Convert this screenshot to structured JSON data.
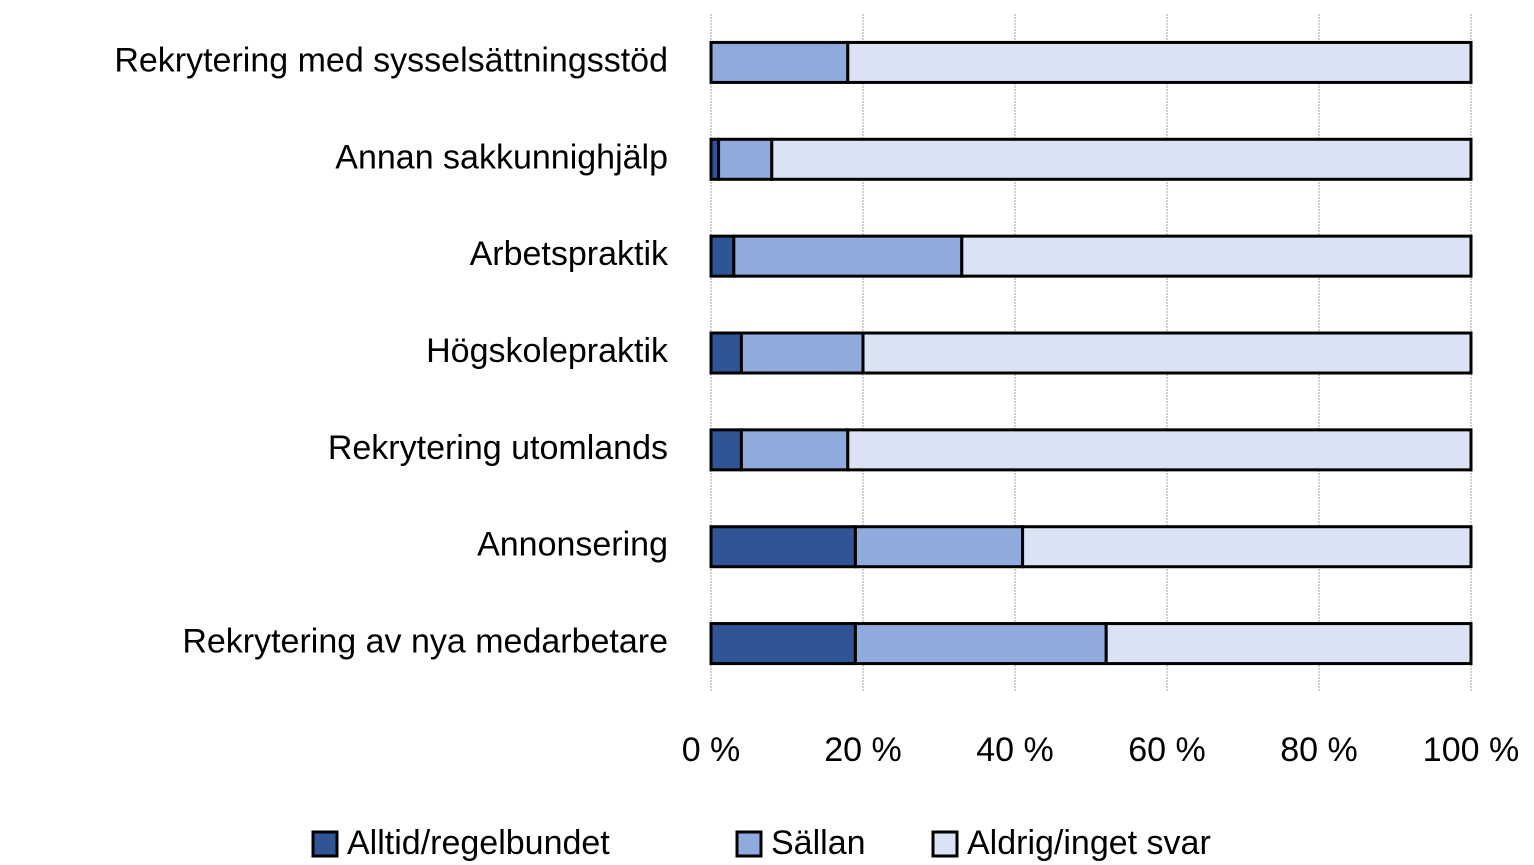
{
  "chart_data": {
    "type": "stacked_barh",
    "categories": [
      "Rekrytering med sysselsättningsstöd",
      "Annan sakkunnighjälp",
      "Arbetspraktik",
      "Högskolepraktik",
      "Rekrytering utomlands",
      "Annonsering",
      "Rekrytering av nya medarbetare"
    ],
    "series": [
      {
        "name": "Alltid/regelbundet",
        "color": "#2f5597",
        "values": [
          0,
          1,
          3,
          4,
          4,
          19,
          19
        ]
      },
      {
        "name": "Sällan",
        "color": "#8faadc",
        "values": [
          18,
          7,
          30,
          16,
          14,
          22,
          33
        ]
      },
      {
        "name": "Aldrig/inget svar",
        "color": "#dae3f3",
        "values": [
          82,
          92,
          67,
          80,
          82,
          59,
          48
        ]
      }
    ],
    "xlim": [
      0,
      100
    ],
    "xticks": [
      {
        "value": 0,
        "label": "0 %"
      },
      {
        "value": 20,
        "label": "20 %"
      },
      {
        "value": 40,
        "label": "40 %"
      },
      {
        "value": 60,
        "label": "60 %"
      },
      {
        "value": 80,
        "label": "80 %"
      },
      {
        "value": 100,
        "label": "100 %"
      }
    ],
    "grid": true,
    "legend": "bottom"
  }
}
